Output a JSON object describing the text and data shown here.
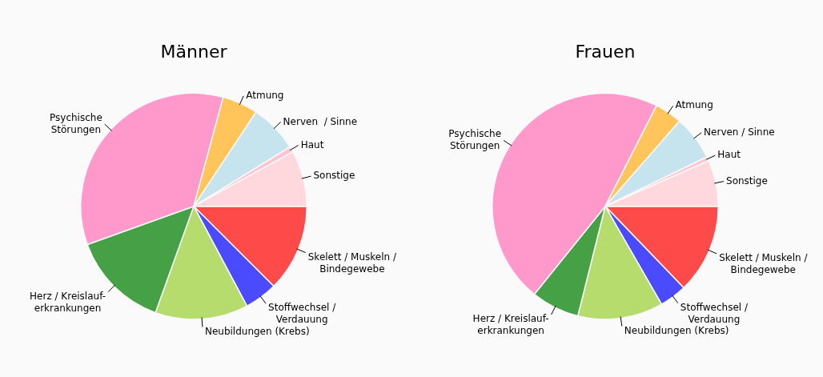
{
  "chart_data": [
    {
      "type": "pie",
      "title": "Männer",
      "categories": [
        "Skelett / Muskeln /\nBindegewebe",
        "Stoffwechsel /\nVerdauung",
        "Neubildungen (Krebs)",
        "Herz / Kreislauf-\nerkrankungen",
        "Psychische\nStörungen",
        "Atmung",
        "Nerven  / Sinne",
        "Haut",
        "Sonstige"
      ],
      "values": [
        12.5,
        4.7,
        13.3,
        14,
        34.7,
        5.1,
        6.9,
        0.8,
        8
      ],
      "colors": [
        "#ff4a4a",
        "#4a4aff",
        "#b6dc6e",
        "#46a046",
        "#ff99cc",
        "#ffc45a",
        "#c6e4ee",
        "#ffc4d0",
        "#ffd8de"
      ],
      "legend": false
    },
    {
      "type": "pie",
      "title": "Frauen",
      "categories": [
        "Skelett / Muskeln /\nBindegewebe",
        "Stoffwechsel /\nVerdauung",
        "Neubildungen (Krebs)",
        "Herz / Kreislauf-\nerkrankungen",
        "Psychische\nStörungen",
        "Atmung",
        "Nerven / Sinne",
        "Haut",
        "Sonstige"
      ],
      "values": [
        12.8,
        3.9,
        12.2,
        6.9,
        46.7,
        3.9,
        6.4,
        0.6,
        6.6
      ],
      "colors": [
        "#ff4a4a",
        "#4a4aff",
        "#b6dc6e",
        "#46a046",
        "#ff99cc",
        "#ffc45a",
        "#c6e4ee",
        "#ffc4d0",
        "#ffd8de"
      ],
      "legend": false
    }
  ]
}
